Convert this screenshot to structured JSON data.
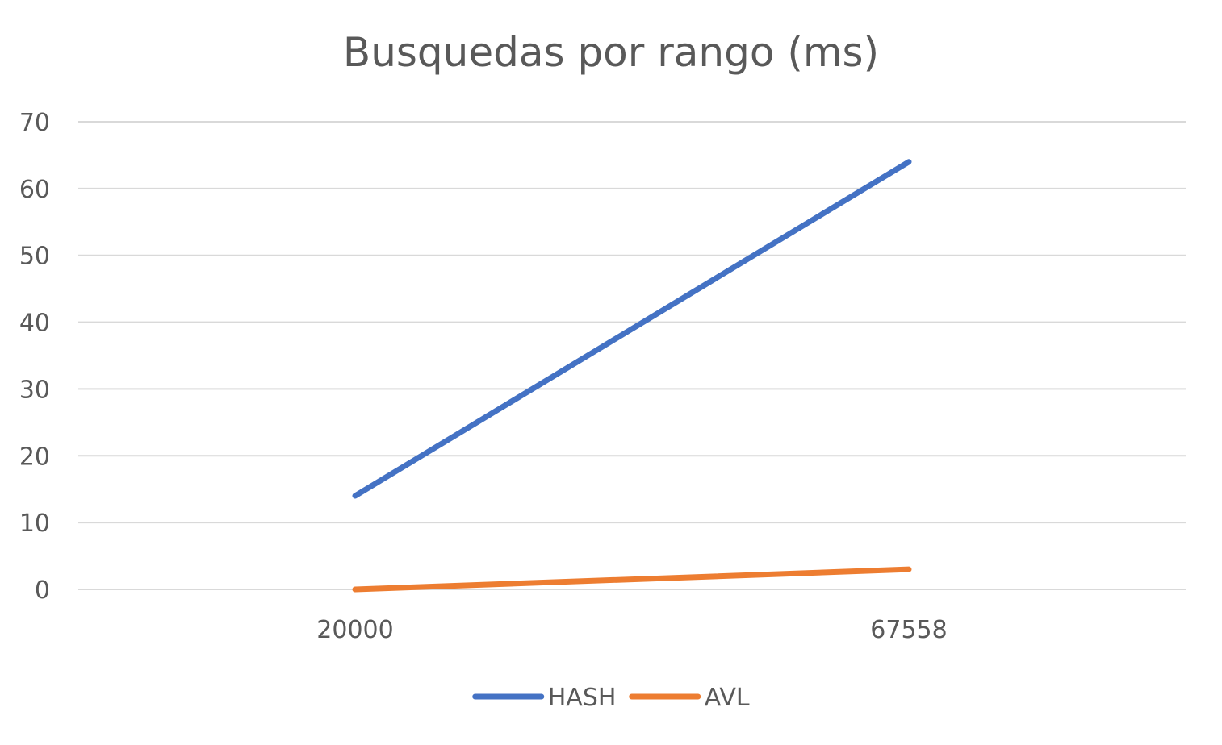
{
  "chart_data": {
    "type": "line",
    "title": "Busquedas por rango (ms)",
    "xlabel": "",
    "ylabel": "",
    "categories": [
      "20000",
      "67558"
    ],
    "ylim": [
      0,
      70
    ],
    "yticks": [
      "0",
      "10",
      "20",
      "30",
      "40",
      "50",
      "60",
      "70"
    ],
    "grid": true,
    "legend_position": "bottom",
    "series": [
      {
        "name": "HASH",
        "values": [
          14,
          64
        ],
        "color": "#4472c4"
      },
      {
        "name": "AVL",
        "values": [
          0,
          3
        ],
        "color": "#ed7d31"
      }
    ]
  }
}
